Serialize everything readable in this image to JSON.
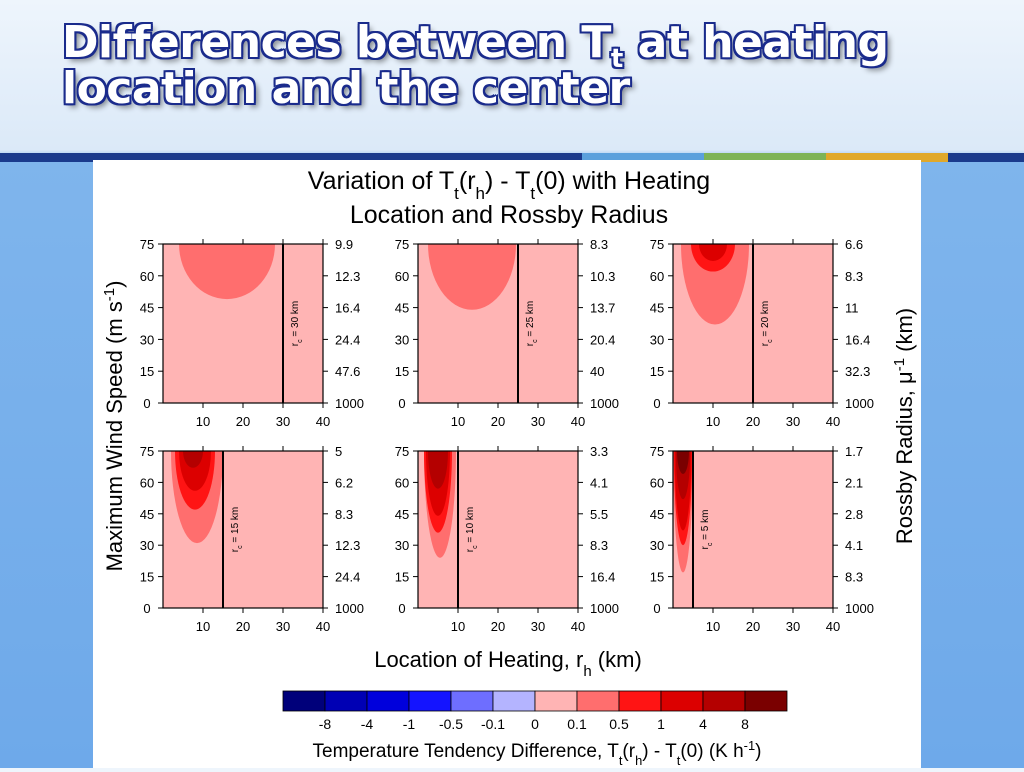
{
  "slide": {
    "title_line1_prefix": "Differences between T",
    "title_line1_sub": "t",
    "title_line1_suffix": " at heating",
    "title_line2": "location and the center",
    "stripe_colors": [
      "#1a3a8c",
      "#5aa0dc",
      "#7db356",
      "#e0a82a",
      "#1a3a8c"
    ]
  },
  "chart_data": {
    "type": "heatmap",
    "title_line1_parts": [
      "Variation of T",
      "t",
      "(r",
      "h",
      ") - T",
      "t",
      "(0) with Heating"
    ],
    "title_line2": "Location and Rossby Radius",
    "xlabel_parts": [
      "Location of Heating, r",
      "h",
      " (km)"
    ],
    "ylabel_left_parts": [
      "Maximum Wind Speed (m s",
      "-1",
      ")"
    ],
    "ylabel_right_parts": [
      "Rossby Radius, μ",
      "-1",
      " (km)"
    ],
    "x_ticks": [
      "10",
      "20",
      "30",
      "40"
    ],
    "y_ticks": [
      "0",
      "15",
      "30",
      "45",
      "60",
      "75"
    ],
    "xlim": [
      0,
      40
    ],
    "ylim": [
      0,
      75
    ],
    "colorbar": {
      "colors": [
        "#00007a",
        "#0000b4",
        "#0000dc",
        "#1414ff",
        "#6e6eff",
        "#b4b4ff",
        "#ffb4b4",
        "#ff6e6e",
        "#ff1414",
        "#dc0000",
        "#b40000",
        "#7a0000"
      ],
      "labels": [
        "-8",
        "-4",
        "-1",
        "-0.5",
        "-0.1",
        "0",
        "0.1",
        "0.5",
        "1",
        "4",
        "8"
      ],
      "title_parts": [
        "Temperature Tendency Difference, T",
        "t",
        "(r",
        "h",
        ") - T",
        "t",
        "(0) (K h",
        "-1",
        ")"
      ]
    },
    "panels": [
      {
        "rc": 30,
        "rc_label": "= 30 km",
        "right_ticks": [
          "1000",
          "47.6",
          "24.4",
          "16.4",
          "12.3",
          "9.9"
        ],
        "regions": [
          {
            "level": 0.1,
            "rx": 12,
            "cx": 16,
            "ybot": 49
          }
        ]
      },
      {
        "rc": 25,
        "rc_label": "= 25 km",
        "right_ticks": [
          "1000",
          "40",
          "20.4",
          "13.7",
          "10.3",
          "8.3"
        ],
        "regions": [
          {
            "level": 0.1,
            "rx": 11,
            "cx": 13.5,
            "ybot": 44
          }
        ]
      },
      {
        "rc": 20,
        "rc_label": "= 20 km",
        "right_ticks": [
          "1000",
          "32.3",
          "16.4",
          "11",
          "8.3",
          "6.6"
        ],
        "regions": [
          {
            "level": 0.1,
            "rx": 8.5,
            "cx": 10.5,
            "ybot": 37
          },
          {
            "level": 0.5,
            "rx": 5.5,
            "cx": 10,
            "ybot": 62
          },
          {
            "level": 1,
            "rx": 3.5,
            "cx": 10,
            "ybot": 67
          }
        ]
      },
      {
        "rc": 15,
        "rc_label": "= 15 km",
        "right_ticks": [
          "1000",
          "24.4",
          "12.3",
          "8.3",
          "6.2",
          "5"
        ],
        "regions": [
          {
            "level": 0.1,
            "rx": 6.5,
            "cx": 8.5,
            "ybot": 31
          },
          {
            "level": 0.5,
            "rx": 5,
            "cx": 8,
            "ybot": 47
          },
          {
            "level": 1,
            "rx": 4,
            "cx": 8,
            "ybot": 56
          },
          {
            "level": 4,
            "rx": 2.5,
            "cx": 7.5,
            "ybot": 67
          }
        ]
      },
      {
        "rc": 10,
        "rc_label": "= 10 km",
        "right_ticks": [
          "1000",
          "16.4",
          "8.3",
          "5.5",
          "4.1",
          "3.3"
        ],
        "regions": [
          {
            "level": 0.1,
            "rx": 4,
            "cx": 5.5,
            "ybot": 24
          },
          {
            "level": 0.5,
            "rx": 3.5,
            "cx": 5,
            "ybot": 36
          },
          {
            "level": 1,
            "rx": 3,
            "cx": 5,
            "ybot": 44
          },
          {
            "level": 4,
            "rx": 2.5,
            "cx": 5,
            "ybot": 57
          }
        ]
      },
      {
        "rc": 5,
        "rc_label": "= 5 km",
        "right_ticks": [
          "1000",
          "8.3",
          "4.1",
          "2.8",
          "2.1",
          "1.7"
        ],
        "regions": [
          {
            "level": 0.1,
            "rx": 2.5,
            "cx": 2.5,
            "ybot": 17
          },
          {
            "level": 0.5,
            "rx": 2.3,
            "cx": 2.5,
            "ybot": 30
          },
          {
            "level": 1,
            "rx": 2.1,
            "cx": 2.5,
            "ybot": 37
          },
          {
            "level": 4,
            "rx": 1.8,
            "cx": 2.5,
            "ybot": 52
          },
          {
            "level": 8,
            "rx": 1.5,
            "cx": 2.5,
            "ybot": 64
          }
        ]
      }
    ]
  }
}
